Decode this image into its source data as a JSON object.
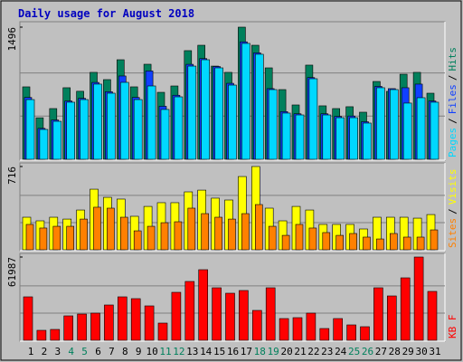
{
  "title": "Daily usage for August 2018",
  "days": {
    "categories": [
      "1",
      "2",
      "3",
      "4",
      "5",
      "6",
      "7",
      "8",
      "9",
      "10",
      "11",
      "12",
      "13",
      "14",
      "15",
      "16",
      "17",
      "18",
      "19",
      "20",
      "21",
      "22",
      "23",
      "24",
      "25",
      "26",
      "27",
      "28",
      "29",
      "30",
      "31"
    ],
    "colors": [
      "#000000",
      "#000000",
      "#000000",
      "#00805c",
      "#00805c",
      "#000000",
      "#000000",
      "#000000",
      "#000000",
      "#000000",
      "#00805c",
      "#00805c",
      "#000000",
      "#000000",
      "#000000",
      "#000000",
      "#000000",
      "#00805c",
      "#00805c",
      "#000000",
      "#000000",
      "#000000",
      "#000000",
      "#000000",
      "#00805c",
      "#00805c",
      "#000000",
      "#000000",
      "#000000",
      "#000000",
      "#000000"
    ]
  },
  "legend_separator": "/",
  "chart_data": [
    {
      "type": "bar",
      "ylim": [
        0,
        1496
      ],
      "yticks": [
        1496
      ],
      "series": [
        {
          "name": "Hits",
          "color": "#00805c",
          "values": [
            820,
            470,
            574,
            810,
            770,
            984,
            902,
            1127,
            820,
            1076,
            758,
            830,
            1230,
            1291,
            1055,
            984,
            1496,
            1291,
            1035,
            789,
            615,
            1066,
            605,
            574,
            595,
            533,
            881,
            769,
            963,
            984,
            748
          ]
        },
        {
          "name": "Files",
          "color": "#1040ff",
          "values": [
            700,
            350,
            445,
            660,
            690,
            870,
            765,
            943,
            700,
            1000,
            600,
            725,
            1075,
            1140,
            1050,
            860,
            1330,
            1205,
            800,
            540,
            515,
            925,
            515,
            485,
            490,
            425,
            825,
            800,
            810,
            851,
            660
          ]
        },
        {
          "name": "Pages",
          "color": "#00d8ff",
          "values": [
            676,
            338,
            430,
            646,
            676,
            851,
            748,
            871,
            676,
            830,
            564,
            707,
            1055,
            1127,
            1035,
            840,
            1312,
            1189,
            789,
            523,
            502,
            912,
            502,
            471,
            471,
            410,
            810,
            789,
            636,
            697,
            646
          ]
        }
      ]
    },
    {
      "type": "bar",
      "ylim": [
        0,
        716
      ],
      "yticks": [
        716
      ],
      "series": [
        {
          "name": "Visits",
          "color": "#ffff00",
          "values": [
            280,
            249,
            280,
            264,
            342,
            521,
            451,
            436,
            288,
            373,
            405,
            405,
            498,
            513,
            444,
            428,
            630,
            716,
            358,
            249,
            373,
            342,
            218,
            218,
            218,
            179,
            280,
            280,
            280,
            272,
            303
          ]
        },
        {
          "name": "Sites",
          "color": "#ff8000",
          "values": [
            218,
            187,
            202,
            202,
            264,
            366,
            358,
            280,
            163,
            202,
            233,
            241,
            358,
            311,
            280,
            264,
            311,
            389,
            202,
            124,
            218,
            187,
            148,
            124,
            140,
            109,
            93,
            140,
            109,
            109,
            171
          ]
        }
      ]
    },
    {
      "type": "bar",
      "ylim": [
        0,
        61987
      ],
      "yticks": [
        61987
      ],
      "series": [
        {
          "name": "KB F",
          "color": "#ff0000",
          "values": [
            32342,
            7412,
            8086,
            18193,
            19540,
            20214,
            26278,
            32342,
            30995,
            25604,
            12802,
            35711,
            43797,
            52556,
            39080,
            35037,
            37058,
            22235,
            39080,
            16171,
            16845,
            20214,
            8759,
            16171,
            11454,
            10107,
            39080,
            33016,
            46492,
            61987,
            36385
          ]
        }
      ]
    }
  ]
}
